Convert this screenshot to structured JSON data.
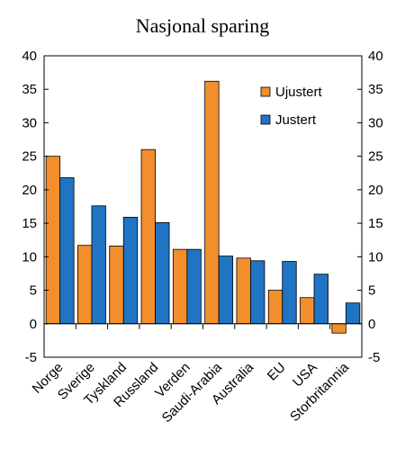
{
  "chart_data": {
    "type": "bar",
    "title": "Nasjonal sparing",
    "xlabel": "",
    "ylabel": "",
    "ylim": [
      -5,
      40
    ],
    "yticks": [
      -5,
      0,
      5,
      10,
      15,
      20,
      25,
      30,
      35,
      40
    ],
    "grid": false,
    "legend_position": "top-right",
    "categories": [
      "Norge",
      "Sverige",
      "Tyskland",
      "Russland",
      "Verden",
      "Saudi-Arabia",
      "Australia",
      "EU",
      "USA",
      "Storbritannia"
    ],
    "series": [
      {
        "name": "Ujustert",
        "color": "#f28e2b",
        "values": [
          25.0,
          11.7,
          11.6,
          26.0,
          11.1,
          36.2,
          9.8,
          5.0,
          3.9,
          -1.4
        ]
      },
      {
        "name": "Justert",
        "color": "#1f74c4",
        "values": [
          21.8,
          17.6,
          15.9,
          15.1,
          11.1,
          10.1,
          9.4,
          9.3,
          7.4,
          3.1
        ]
      }
    ]
  }
}
